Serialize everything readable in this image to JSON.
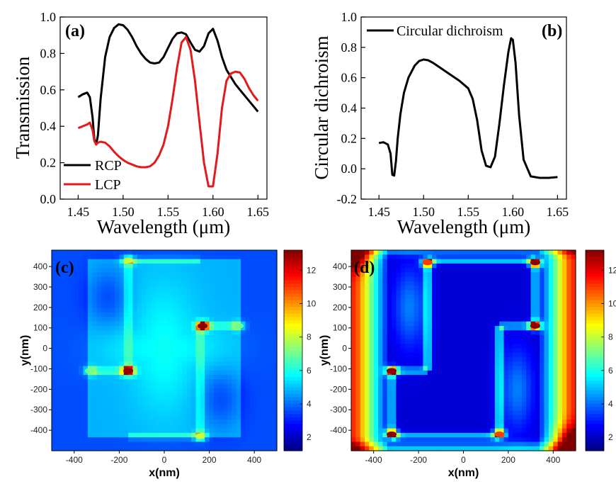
{
  "chart_data": [
    {
      "type": "line",
      "panel_label": "(a)",
      "xlabel": "Wavelength (μm)",
      "ylabel": "Transmission",
      "xlim": [
        1.43,
        1.66
      ],
      "ylim": [
        0.0,
        1.0
      ],
      "xticks": [
        "1.45",
        "1.50",
        "1.55",
        "1.60",
        "1.65"
      ],
      "yticks": [
        "0.0",
        "0.2",
        "0.4",
        "0.6",
        "0.8",
        "1.0"
      ],
      "legend_position": "bottom-left",
      "series": [
        {
          "name": "RCP",
          "color": "#000000",
          "x": [
            1.45,
            1.455,
            1.46,
            1.463,
            1.466,
            1.468,
            1.47,
            1.472,
            1.475,
            1.48,
            1.485,
            1.49,
            1.495,
            1.5,
            1.505,
            1.51,
            1.515,
            1.52,
            1.525,
            1.53,
            1.535,
            1.54,
            1.545,
            1.55,
            1.555,
            1.56,
            1.565,
            1.57,
            1.575,
            1.58,
            1.585,
            1.59,
            1.595,
            1.6,
            1.605,
            1.61,
            1.615,
            1.62,
            1.625,
            1.63,
            1.64,
            1.65
          ],
          "y": [
            0.56,
            0.575,
            0.585,
            0.56,
            0.45,
            0.33,
            0.3,
            0.35,
            0.55,
            0.78,
            0.89,
            0.94,
            0.96,
            0.955,
            0.93,
            0.89,
            0.84,
            0.8,
            0.77,
            0.75,
            0.745,
            0.75,
            0.78,
            0.83,
            0.88,
            0.91,
            0.915,
            0.905,
            0.86,
            0.82,
            0.81,
            0.84,
            0.91,
            0.935,
            0.87,
            0.78,
            0.71,
            0.67,
            0.63,
            0.6,
            0.54,
            0.48
          ]
        },
        {
          "name": "LCP",
          "color": "#e31a1c",
          "x": [
            1.45,
            1.455,
            1.46,
            1.463,
            1.466,
            1.468,
            1.47,
            1.472,
            1.475,
            1.48,
            1.485,
            1.49,
            1.495,
            1.5,
            1.505,
            1.51,
            1.515,
            1.52,
            1.525,
            1.53,
            1.535,
            1.54,
            1.545,
            1.55,
            1.555,
            1.56,
            1.565,
            1.57,
            1.575,
            1.58,
            1.585,
            1.59,
            1.595,
            1.6,
            1.605,
            1.61,
            1.615,
            1.62,
            1.625,
            1.63,
            1.635,
            1.64,
            1.645,
            1.65
          ],
          "y": [
            0.39,
            0.4,
            0.41,
            0.42,
            0.38,
            0.32,
            0.3,
            0.31,
            0.315,
            0.31,
            0.29,
            0.26,
            0.235,
            0.215,
            0.2,
            0.19,
            0.18,
            0.175,
            0.175,
            0.18,
            0.2,
            0.24,
            0.3,
            0.4,
            0.55,
            0.72,
            0.86,
            0.89,
            0.82,
            0.65,
            0.42,
            0.2,
            0.07,
            0.07,
            0.25,
            0.5,
            0.65,
            0.69,
            0.7,
            0.695,
            0.66,
            0.61,
            0.57,
            0.54
          ]
        }
      ]
    },
    {
      "type": "line",
      "panel_label": "(b)",
      "xlabel": "Wavelength (μm)",
      "ylabel": "Circular dichroism",
      "xlim": [
        1.43,
        1.66
      ],
      "ylim": [
        -0.2,
        1.0
      ],
      "xticks": [
        "1.45",
        "1.50",
        "1.55",
        "1.60",
        "1.65"
      ],
      "yticks": [
        "-0.2",
        "0.0",
        "0.2",
        "0.4",
        "0.6",
        "0.8",
        "1.0"
      ],
      "legend_position": "top-left",
      "series": [
        {
          "name": "Circular dichroism",
          "color": "#000000",
          "x": [
            1.45,
            1.455,
            1.46,
            1.463,
            1.465,
            1.467,
            1.469,
            1.471,
            1.474,
            1.478,
            1.483,
            1.49,
            1.495,
            1.5,
            1.505,
            1.51,
            1.515,
            1.52,
            1.53,
            1.54,
            1.55,
            1.555,
            1.56,
            1.565,
            1.57,
            1.575,
            1.58,
            1.585,
            1.59,
            1.595,
            1.598,
            1.6,
            1.603,
            1.607,
            1.612,
            1.62,
            1.63,
            1.64,
            1.65
          ],
          "y": [
            0.17,
            0.175,
            0.16,
            0.1,
            -0.04,
            -0.045,
            0.05,
            0.2,
            0.36,
            0.5,
            0.6,
            0.68,
            0.71,
            0.72,
            0.715,
            0.7,
            0.68,
            0.66,
            0.62,
            0.58,
            0.53,
            0.46,
            0.32,
            0.12,
            0.02,
            0.01,
            0.08,
            0.3,
            0.55,
            0.77,
            0.86,
            0.85,
            0.7,
            0.35,
            0.06,
            -0.05,
            -0.06,
            -0.06,
            -0.055
          ]
        }
      ]
    },
    {
      "type": "heatmap",
      "panel_label": "(c)",
      "xlabel": "x(nm)",
      "ylabel": "y(nm)",
      "xlim": [
        -500,
        500
      ],
      "ylim": [
        -500,
        480
      ],
      "xticks": [
        "-400",
        "-200",
        "0",
        "200",
        "400"
      ],
      "yticks": [
        "400",
        "300",
        "200",
        "100",
        "0",
        "-100",
        "-200",
        "-300",
        "-400"
      ],
      "colorbar_ticks": [
        "12",
        "10",
        "8",
        "6",
        "4",
        "2"
      ],
      "colorbar_range": [
        1.2,
        13.2
      ],
      "background_level": 4.8,
      "hotspots": [
        {
          "x": -160,
          "y": -110,
          "value": 13
        },
        {
          "x": 170,
          "y": 110,
          "value": 13
        },
        {
          "x": -330,
          "y": -110,
          "value": 7
        },
        {
          "x": 330,
          "y": 110,
          "value": 7
        },
        {
          "x": -160,
          "y": 430,
          "value": 8
        },
        {
          "x": 160,
          "y": -430,
          "value": 8
        }
      ]
    },
    {
      "type": "heatmap",
      "panel_label": "(d)",
      "xlabel": "x(nm)",
      "ylabel": "y(nm)",
      "xlim": [
        -500,
        500
      ],
      "ylim": [
        -500,
        480
      ],
      "xticks": [
        "-400",
        "-200",
        "0",
        "200",
        "400"
      ],
      "yticks": [
        "400",
        "300",
        "200",
        "100",
        "0",
        "-100",
        "-200",
        "-300",
        "-400"
      ],
      "colorbar_ticks": [
        "12",
        "10",
        "8",
        "6",
        "4",
        "2"
      ],
      "colorbar_range": [
        1.2,
        13.2
      ],
      "background_level": 3.5,
      "hotspots": [
        {
          "x": -320,
          "y": -110,
          "value": 13
        },
        {
          "x": -320,
          "y": -420,
          "value": 13
        },
        {
          "x": 320,
          "y": 110,
          "value": 13
        },
        {
          "x": 320,
          "y": 420,
          "value": 13
        },
        {
          "x": -160,
          "y": 420,
          "value": 11
        },
        {
          "x": 160,
          "y": -420,
          "value": 11
        }
      ]
    }
  ]
}
